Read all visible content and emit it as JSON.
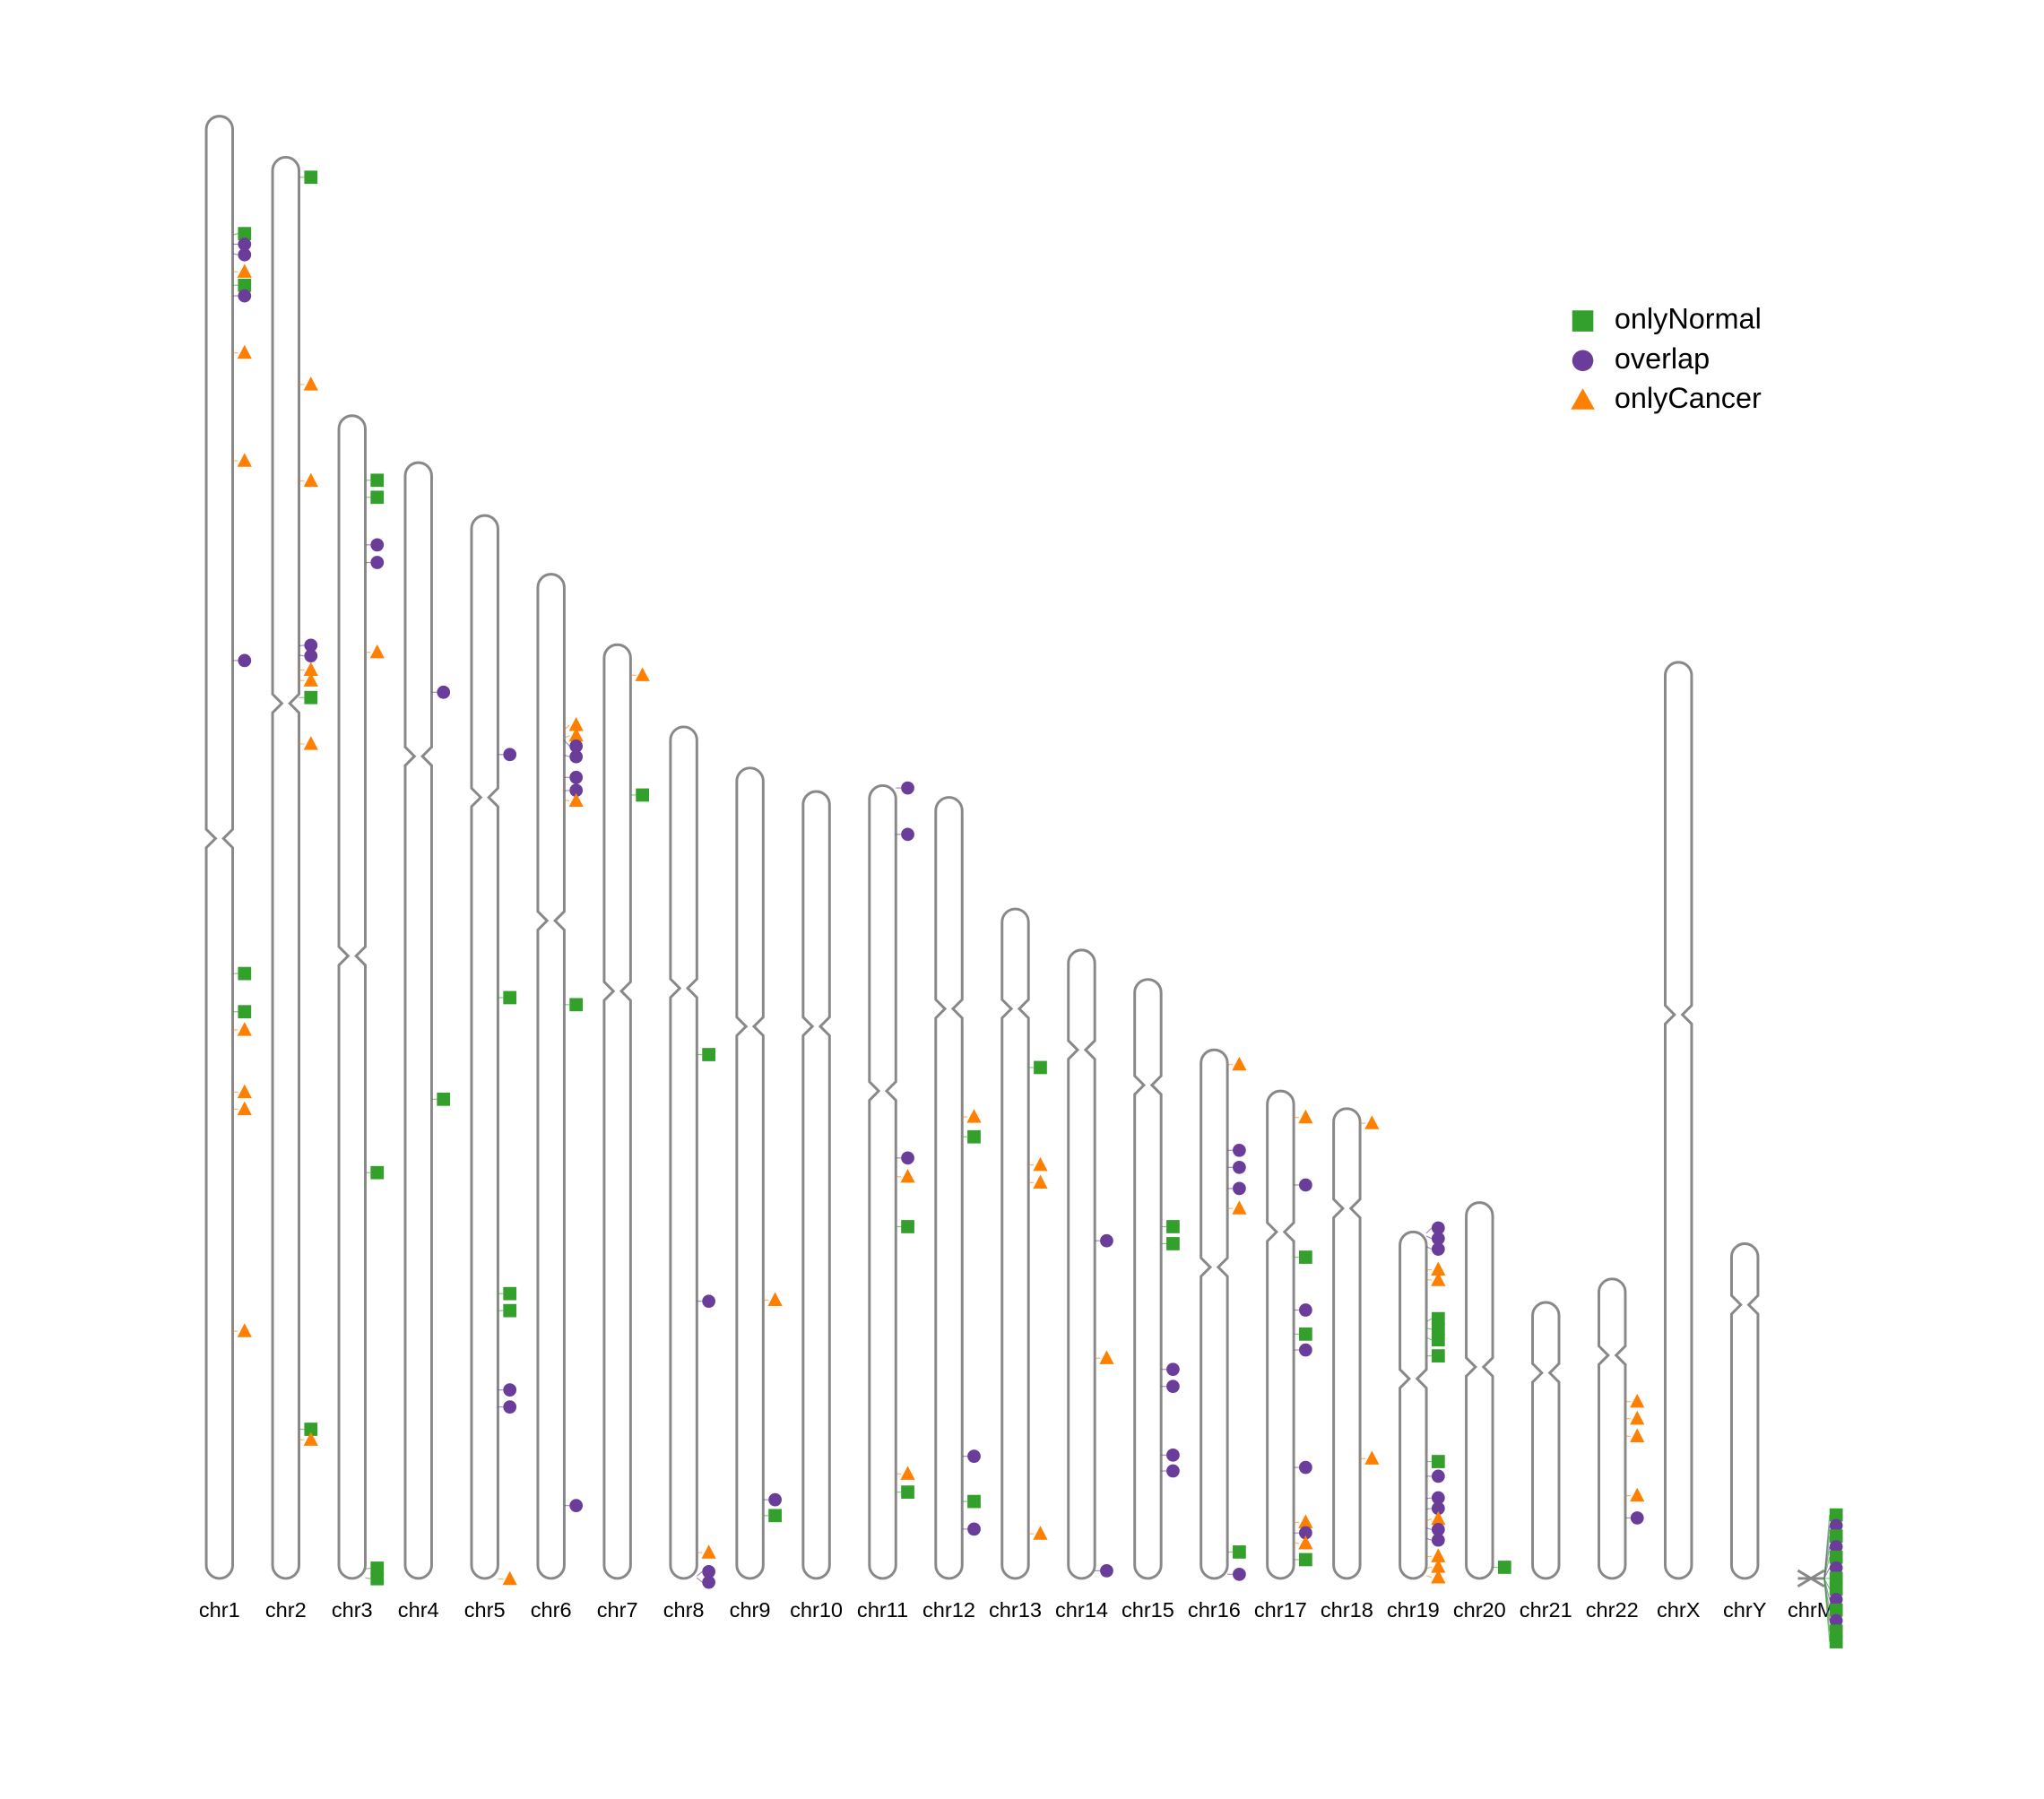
{
  "chart_data": {
    "type": "ideogram",
    "categories": [
      "chr1",
      "chr2",
      "chr3",
      "chr4",
      "chr5",
      "chr6",
      "chr7",
      "chr8",
      "chr9",
      "chr10",
      "chr11",
      "chr12",
      "chr13",
      "chr14",
      "chr15",
      "chr16",
      "chr17",
      "chr18",
      "chr19",
      "chr20",
      "chr21",
      "chr22",
      "chrX",
      "chrY",
      "chrM"
    ],
    "lengths": [
      249,
      242,
      198,
      190,
      181,
      171,
      159,
      145,
      138,
      134,
      135,
      133,
      114,
      107,
      102,
      90,
      83,
      80,
      59,
      64,
      47,
      51,
      156,
      57,
      0.0166
    ],
    "centromeres": [
      123,
      93,
      92,
      50,
      48,
      59,
      59,
      44.5,
      44,
      40,
      52,
      36,
      17,
      17,
      18,
      37,
      24,
      17,
      25,
      28,
      12,
      13,
      60,
      10.4,
      null
    ],
    "chromosome_color": "#888888",
    "series": [
      {
        "name": "onlyNormal",
        "color": "#33a02c",
        "shape": "square",
        "points": [
          [
            0,
            20.2
          ],
          [
            0,
            28.8
          ],
          [
            0,
            146.0
          ],
          [
            0,
            152.5
          ],
          [
            1,
            3.4
          ],
          [
            1,
            92.0
          ],
          [
            1,
            216.6
          ],
          [
            2,
            11.0
          ],
          [
            2,
            13.9
          ],
          [
            2,
            128.9
          ],
          [
            2,
            196.4
          ],
          [
            2,
            197.9
          ],
          [
            3,
            108.4
          ],
          [
            4,
            82.1
          ],
          [
            4,
            132.5
          ],
          [
            4,
            135.4
          ],
          [
            5,
            73.3
          ],
          [
            6,
            25.6
          ],
          [
            7,
            55.8
          ],
          [
            8,
            127.3
          ],
          [
            10,
            75.1
          ],
          [
            10,
            120.3
          ],
          [
            11,
            57.8
          ],
          [
            11,
            119.9
          ],
          [
            12,
            27.0
          ],
          [
            14,
            42.1
          ],
          [
            14,
            45.0
          ],
          [
            15,
            85.5
          ],
          [
            16,
            28.3
          ],
          [
            16,
            41.4
          ],
          [
            16,
            79.8
          ],
          [
            18,
            15.3
          ],
          [
            18,
            16.4
          ],
          [
            18,
            18.0
          ],
          [
            18,
            21.1
          ],
          [
            18,
            39.1
          ],
          [
            19,
            62.1
          ],
          [
            24,
            0.001
          ],
          [
            24,
            0.003
          ],
          [
            24,
            0.005
          ],
          [
            24,
            0.007
          ],
          [
            24,
            0.008
          ],
          [
            24,
            0.01
          ],
          [
            24,
            0.012
          ],
          [
            24,
            0.013
          ]
        ]
      },
      {
        "name": "overlap",
        "color": "#6a3d9a",
        "shape": "circle",
        "points": [
          [
            0,
            21.8
          ],
          [
            0,
            23.4
          ],
          [
            0,
            30.6
          ],
          [
            0,
            92.7
          ],
          [
            1,
            83.2
          ],
          [
            1,
            84.8
          ],
          [
            2,
            22.0
          ],
          [
            2,
            25.0
          ],
          [
            3,
            39.1
          ],
          [
            4,
            40.7
          ],
          [
            4,
            148.9
          ],
          [
            4,
            151.8
          ],
          [
            5,
            28.3
          ],
          [
            5,
            30.8
          ],
          [
            5,
            34.6
          ],
          [
            5,
            36.9
          ],
          [
            5,
            158.6
          ],
          [
            7,
            97.8
          ],
          [
            7,
            144.6
          ],
          [
            7,
            144.9
          ],
          [
            8,
            124.6
          ],
          [
            10,
            0.4
          ],
          [
            10,
            8.3
          ],
          [
            10,
            63.4
          ],
          [
            11,
            112.2
          ],
          [
            11,
            124.6
          ],
          [
            13,
            49.5
          ],
          [
            13,
            105.7
          ],
          [
            14,
            66.4
          ],
          [
            14,
            69.3
          ],
          [
            14,
            81.0
          ],
          [
            14,
            83.7
          ],
          [
            15,
            17.1
          ],
          [
            15,
            20.0
          ],
          [
            15,
            23.6
          ],
          [
            15,
            89.3
          ],
          [
            16,
            16.0
          ],
          [
            16,
            37.3
          ],
          [
            16,
            44.1
          ],
          [
            16,
            64.1
          ],
          [
            16,
            75.3
          ],
          [
            18,
            0.2
          ],
          [
            18,
            0.7
          ],
          [
            18,
            2.5
          ],
          [
            18,
            41.6
          ],
          [
            18,
            45.4
          ],
          [
            18,
            47.2
          ],
          [
            18,
            50.4
          ],
          [
            18,
            52.2
          ],
          [
            21,
            40.7
          ],
          [
            24,
            0.002
          ],
          [
            24,
            0.004
          ],
          [
            24,
            0.006
          ],
          [
            24,
            0.009
          ],
          [
            24,
            0.011
          ]
        ]
      },
      {
        "name": "onlyCancer",
        "color": "#ff7f00",
        "shape": "triangle",
        "points": [
          [
            0,
            26.5
          ],
          [
            0,
            40.3
          ],
          [
            0,
            58.7
          ],
          [
            0,
            155.6
          ],
          [
            0,
            166.2
          ],
          [
            0,
            169.1
          ],
          [
            0,
            206.9
          ],
          [
            1,
            38.7
          ],
          [
            1,
            55.1
          ],
          [
            1,
            87.3
          ],
          [
            1,
            89.1
          ],
          [
            1,
            99.9
          ],
          [
            1,
            218.4
          ],
          [
            2,
            40.3
          ],
          [
            4,
            181.1
          ],
          [
            5,
            26.5
          ],
          [
            5,
            27.9
          ],
          [
            5,
            38.5
          ],
          [
            6,
            5.2
          ],
          [
            7,
            140.6
          ],
          [
            8,
            90.6
          ],
          [
            10,
            66.6
          ],
          [
            10,
            117.2
          ],
          [
            11,
            54.4
          ],
          [
            12,
            43.6
          ],
          [
            12,
            46.6
          ],
          [
            12,
            106.4
          ],
          [
            13,
            69.5
          ],
          [
            15,
            2.5
          ],
          [
            15,
            27.0
          ],
          [
            16,
            4.5
          ],
          [
            16,
            73.5
          ],
          [
            16,
            76.9
          ],
          [
            17,
            2.5
          ],
          [
            17,
            59.6
          ],
          [
            18,
            6.5
          ],
          [
            18,
            8.1
          ],
          [
            18,
            49.2
          ],
          [
            18,
            55.3
          ],
          [
            18,
            57.3
          ],
          [
            18,
            58.5
          ],
          [
            21,
            20.9
          ],
          [
            21,
            23.8
          ],
          [
            21,
            26.8
          ],
          [
            21,
            36.9
          ]
        ]
      }
    ]
  }
}
